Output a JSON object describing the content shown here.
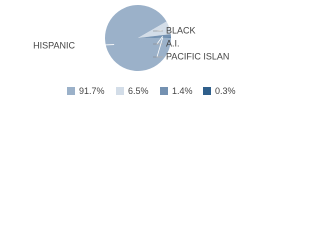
{
  "chart_data": {
    "type": "pie",
    "categories": [
      "HISPANIC",
      "BLACK",
      "A.I.",
      "PACIFIC ISLAN"
    ],
    "values": [
      91.7,
      6.5,
      1.4,
      0.3
    ],
    "value_labels": [
      "91.7%",
      "6.5%",
      "1.4%",
      "0.3%"
    ],
    "colors": [
      "#9bb1c9",
      "#d3dde8",
      "#7491b1",
      "#2f5f8b"
    ]
  }
}
